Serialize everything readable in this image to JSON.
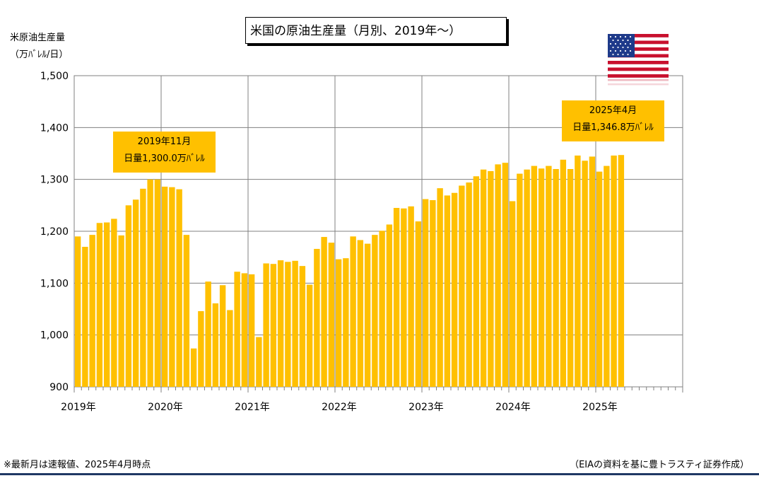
{
  "chart_data": {
    "type": "bar",
    "title": "米国の原油生産量（月別、2019年～）",
    "ylabel_line1": "米原油生産量",
    "ylabel_line2": "（万ﾊﾞﾚﾙ/日）",
    "ylim": [
      900,
      1500
    ],
    "yticks": [
      "900",
      "1,000",
      "1,100",
      "1,200",
      "1,300",
      "1,400",
      "1,500"
    ],
    "ytick_values": [
      900,
      1000,
      1100,
      1200,
      1300,
      1400,
      1500
    ],
    "xtick_labels": [
      "2019年",
      "2020年",
      "2021年",
      "2022年",
      "2023年",
      "2024年",
      "2025年"
    ],
    "grid": true,
    "bar_color": "#FFC000",
    "start": "2019-01",
    "months_total": 84,
    "values": [
      1190,
      1170,
      1193,
      1216,
      1217,
      1224,
      1192,
      1250,
      1261,
      1282,
      1300,
      1300,
      1286,
      1285,
      1281,
      1193,
      974,
      1046,
      1103,
      1061,
      1096,
      1048,
      1122,
      1119,
      1117,
      996,
      1138,
      1137,
      1144,
      1141,
      1143,
      1133,
      1097,
      1166,
      1189,
      1178,
      1146,
      1148,
      1190,
      1183,
      1176,
      1193,
      1201,
      1213,
      1245,
      1244,
      1248,
      1219,
      1262,
      1260,
      1283,
      1269,
      1274,
      1288,
      1294,
      1306,
      1319,
      1316,
      1329,
      1332,
      1258,
      1311,
      1319,
      1326,
      1321,
      1326,
      1320,
      1338,
      1320,
      1346,
      1336,
      1344,
      1315,
      1326,
      1346,
      1347
    ],
    "annotations": [
      {
        "line1": "2019年11月",
        "line2": "日量1,300.0万ﾊﾞﾚﾙ"
      },
      {
        "line1": "2025年4月",
        "line2": "日量1,346.8万ﾊﾞﾚﾙ"
      }
    ]
  },
  "footnote_left": "※最新月は速報値、2025年4月時点",
  "footnote_right": "（EIAの資料を基に豊トラスティ証券作成）",
  "flag_icon": "us-flag-icon",
  "colors": {
    "bar": "#FFC000",
    "grid": "#808080",
    "footer_rule": "#1F3864"
  }
}
